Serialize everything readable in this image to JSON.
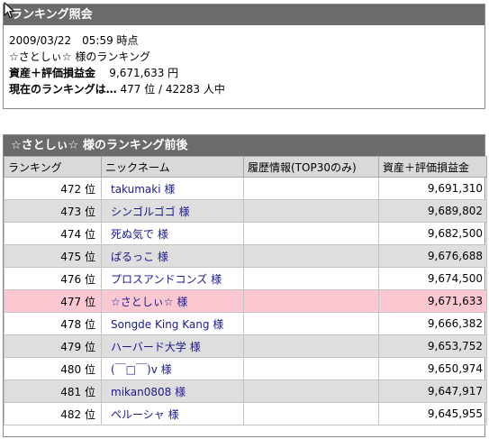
{
  "summary": {
    "title": "ランキング照会",
    "datetime": "2009/03/22　05:59 時点",
    "user_ranking_line": "☆さとしぃ☆ 様のランキング",
    "asset_label": "資産＋評価損益金",
    "asset_value": "9,671,633 円",
    "current_label": "現在のランキングは…",
    "current_value": "477 位 / 42283 人中"
  },
  "table": {
    "title": "☆さとしぃ☆ 様のランキング前後",
    "headers": [
      "ランキング",
      "ニックネーム",
      "履歴情報(TOP30のみ)",
      "資産＋評価損益金"
    ],
    "rows": [
      {
        "rank": "472 位",
        "nick": "takumaki 様",
        "history": "",
        "value": "9,691,310"
      },
      {
        "rank": "473 位",
        "nick": "シンゴルゴゴ 様",
        "history": "",
        "value": "9,689,802"
      },
      {
        "rank": "474 位",
        "nick": "死ぬ気で 様",
        "history": "",
        "value": "9,682,500"
      },
      {
        "rank": "475 位",
        "nick": "ぱるっこ 様",
        "history": "",
        "value": "9,676,688"
      },
      {
        "rank": "476 位",
        "nick": "プロスアンドコンズ 様",
        "history": "",
        "value": "9,674,500"
      },
      {
        "rank": "477 位",
        "nick": "☆さとしぃ☆ 様",
        "history": "",
        "value": "9,671,633"
      },
      {
        "rank": "478 位",
        "nick": "Songde King Kang 様",
        "history": "",
        "value": "9,666,382"
      },
      {
        "rank": "479 位",
        "nick": "ハーバード大学 様",
        "history": "",
        "value": "9,653,752"
      },
      {
        "rank": "480 位",
        "nick": "(￣□￣)v 様",
        "history": "",
        "value": "9,650,974"
      },
      {
        "rank": "481 位",
        "nick": "mikan0808 様",
        "history": "",
        "value": "9,647,917"
      },
      {
        "rank": "482 位",
        "nick": "ペルーシャ 様",
        "history": "",
        "value": "9,645,955"
      }
    ]
  }
}
